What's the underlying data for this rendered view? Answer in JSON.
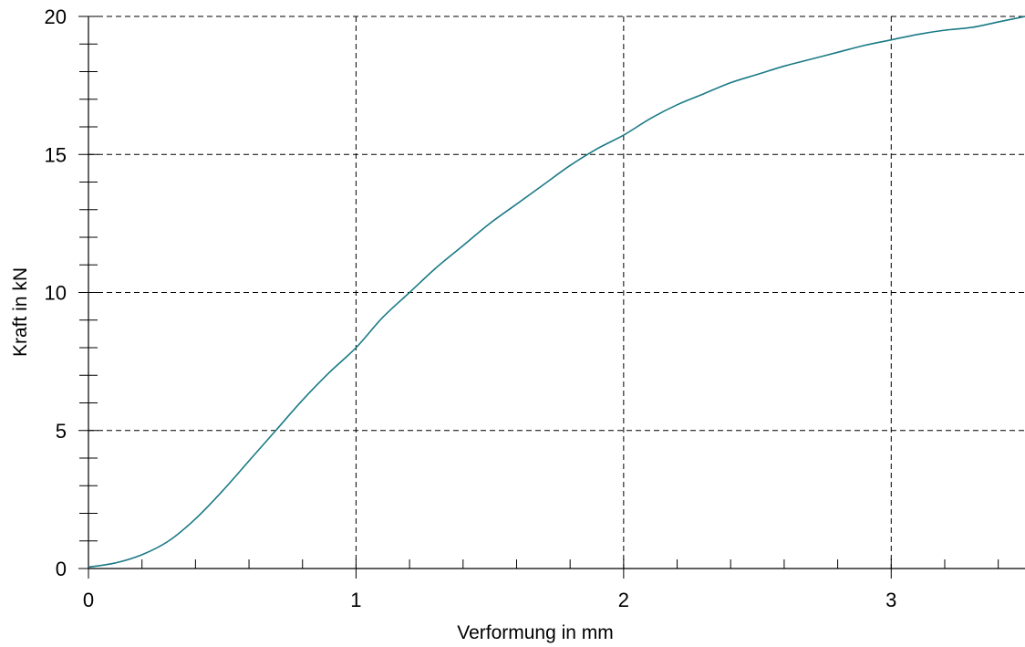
{
  "chart_data": {
    "type": "line",
    "title": "",
    "xlabel": "Verformung in mm",
    "ylabel": "Kraft in kN",
    "xlim": [
      0,
      3.5
    ],
    "ylim": [
      0,
      20
    ],
    "x_ticks": [
      {
        "value": 0,
        "label": "0"
      },
      {
        "value": 1,
        "label": "1"
      },
      {
        "value": 2,
        "label": "2"
      },
      {
        "value": 3,
        "label": "3"
      }
    ],
    "y_ticks": [
      {
        "value": 0,
        "label": "0"
      },
      {
        "value": 5,
        "label": "5"
      },
      {
        "value": 10,
        "label": "10"
      },
      {
        "value": 15,
        "label": "15"
      },
      {
        "value": 20,
        "label": "20"
      }
    ],
    "x_minor_step": 0.2,
    "y_minor_step": 1,
    "grid": true,
    "grid_style": "dashed",
    "series": [
      {
        "color": "#1a7a86",
        "x": [
          0,
          0.1,
          0.2,
          0.3,
          0.4,
          0.5,
          0.6,
          0.7,
          0.8,
          0.9,
          1.0,
          1.1,
          1.2,
          1.3,
          1.4,
          1.5,
          1.6,
          1.7,
          1.8,
          1.9,
          2.0,
          2.1,
          2.2,
          2.3,
          2.4,
          2.5,
          2.6,
          2.7,
          2.8,
          2.9,
          3.0,
          3.1,
          3.2,
          3.3,
          3.4,
          3.5
        ],
        "y": [
          0.05,
          0.2,
          0.5,
          1.0,
          1.8,
          2.8,
          3.9,
          5.0,
          6.1,
          7.1,
          8.0,
          9.1,
          10.0,
          10.9,
          11.7,
          12.5,
          13.2,
          13.9,
          14.6,
          15.2,
          15.7,
          16.3,
          16.8,
          17.2,
          17.6,
          17.9,
          18.2,
          18.45,
          18.7,
          18.95,
          19.15,
          19.35,
          19.5,
          19.6,
          19.8,
          20.0
        ]
      }
    ]
  }
}
